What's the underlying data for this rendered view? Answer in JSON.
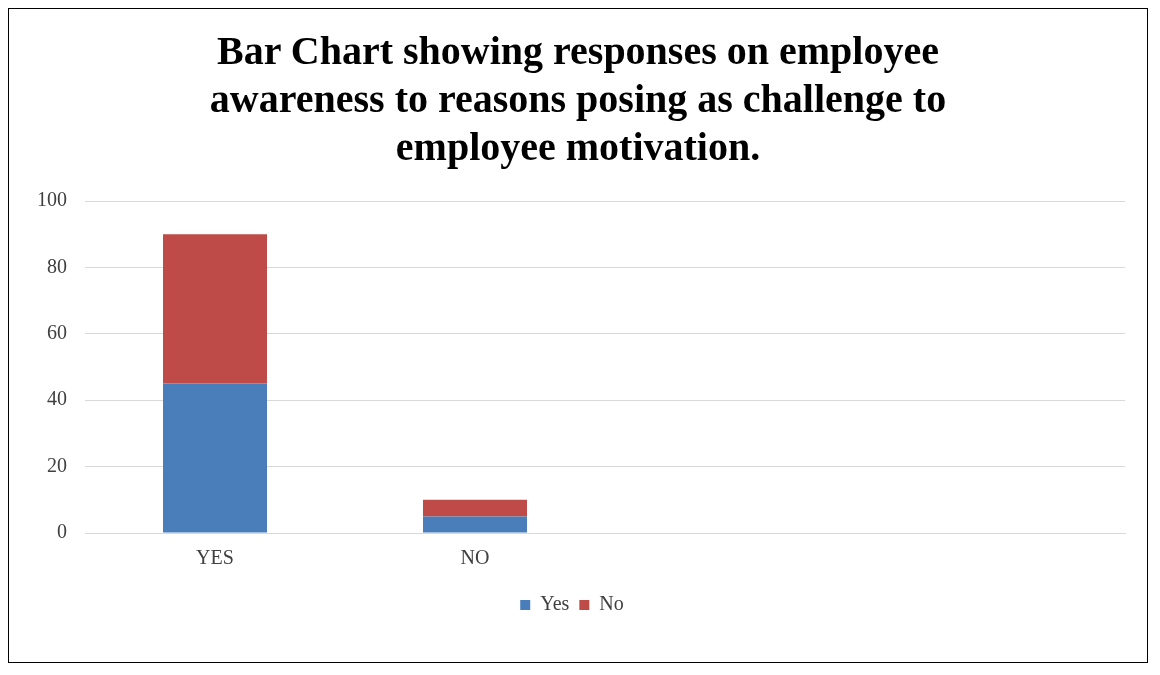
{
  "chart_data": {
    "type": "bar",
    "title": "Bar Chart showing responses on employee awareness to reasons posing as challenge to employee motivation.",
    "categories": [
      "YES",
      "NO",
      null,
      null
    ],
    "stacked": true,
    "series": [
      {
        "name": "Yes",
        "color": "#4a7ebb",
        "values": [
          45,
          5,
          null,
          null
        ]
      },
      {
        "name": "No",
        "color": "#be4b48",
        "values": [
          45,
          5,
          null,
          null
        ]
      }
    ],
    "ylim": [
      0,
      100
    ],
    "yticks": [
      0,
      20,
      40,
      60,
      80,
      100
    ],
    "grid": "y",
    "legend": "bottom"
  }
}
